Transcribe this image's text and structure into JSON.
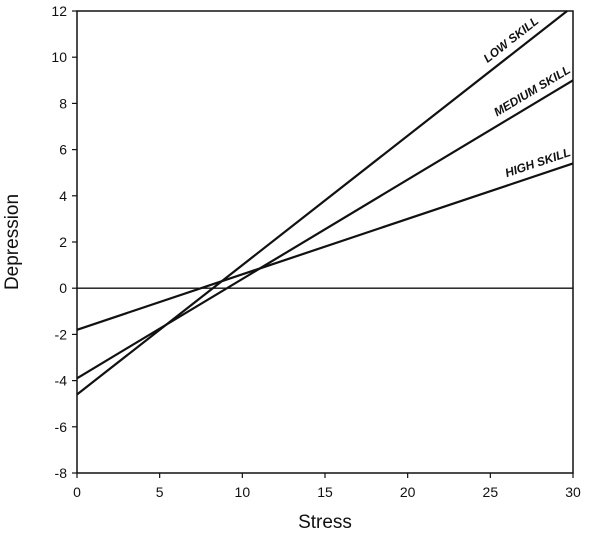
{
  "chart_data": {
    "type": "line",
    "xlabel": "Stress",
    "ylabel": "Depression",
    "xlim": [
      0,
      30
    ],
    "ylim": [
      -8,
      12
    ],
    "xticks": [
      0,
      5,
      10,
      15,
      20,
      25,
      30
    ],
    "yticks": [
      12,
      10,
      8,
      6,
      4,
      2,
      0,
      -2,
      -4,
      -6,
      -8
    ],
    "grid": false,
    "legend": "inline labels at line ends",
    "series": [
      {
        "name": "LOW SKILL",
        "x": [
          0,
          30
        ],
        "y": [
          -4.6,
          12.2
        ]
      },
      {
        "name": "MEDIUM SKILL",
        "x": [
          0,
          30
        ],
        "y": [
          -3.9,
          9.0
        ]
      },
      {
        "name": "HIGH SKILL",
        "x": [
          0,
          30
        ],
        "y": [
          -1.8,
          5.4
        ]
      }
    ]
  }
}
